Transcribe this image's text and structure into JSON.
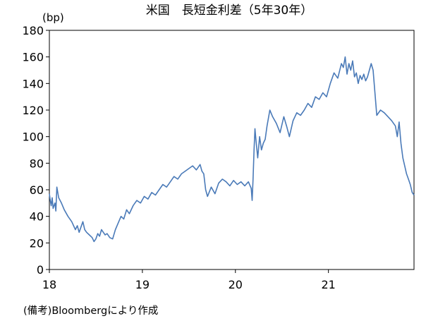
{
  "chart_data": {
    "type": "line",
    "title": "米国　長短金利差（5年30年）",
    "ylabel": "(bp)",
    "xlabel": "",
    "note": "(備考)Bloombergにより作成",
    "ylim": [
      0,
      180
    ],
    "yticks": [
      0,
      20,
      40,
      60,
      80,
      100,
      120,
      140,
      160,
      180
    ],
    "ytick_labels": [
      "0",
      "20",
      "40",
      "60",
      "80",
      "100",
      "120",
      "140",
      "160",
      "180"
    ],
    "xlim": [
      2018.0,
      2021.92
    ],
    "xticks": [
      2018,
      2019,
      2020,
      2021
    ],
    "xtick_labels": [
      "18",
      "19",
      "20",
      "21"
    ],
    "line_color": "#4a7ab8",
    "series": [
      {
        "x": [
          2018.0,
          2018.01,
          2018.02,
          2018.03,
          2018.04,
          2018.06,
          2018.07,
          2018.08,
          2018.1,
          2018.13,
          2018.16,
          2018.2,
          2018.24,
          2018.28,
          2018.3,
          2018.32,
          2018.36,
          2018.38,
          2018.4,
          2018.43,
          2018.46,
          2018.48,
          2018.5,
          2018.52,
          2018.54,
          2018.56,
          2018.58,
          2018.6,
          2018.62,
          2018.65,
          2018.68,
          2018.71,
          2018.74,
          2018.77,
          2018.8,
          2018.83,
          2018.86,
          2018.9,
          2018.94,
          2018.98,
          2019.02,
          2019.06,
          2019.1,
          2019.14,
          2019.18,
          2019.22,
          2019.26,
          2019.3,
          2019.34,
          2019.38,
          2019.42,
          2019.46,
          2019.5,
          2019.54,
          2019.58,
          2019.62,
          2019.64,
          2019.66,
          2019.68,
          2019.7,
          2019.74,
          2019.78,
          2019.82,
          2019.86,
          2019.9,
          2019.94,
          2019.98,
          2020.02,
          2020.06,
          2020.1,
          2020.14,
          2020.17,
          2020.18,
          2020.19,
          2020.2,
          2020.21,
          2020.22,
          2020.24,
          2020.26,
          2020.28,
          2020.3,
          2020.32,
          2020.34,
          2020.37,
          2020.4,
          2020.44,
          2020.48,
          2020.52,
          2020.55,
          2020.58,
          2020.62,
          2020.66,
          2020.7,
          2020.74,
          2020.78,
          2020.82,
          2020.86,
          2020.9,
          2020.94,
          2020.98,
          2021.02,
          2021.06,
          2021.1,
          2021.14,
          2021.16,
          2021.18,
          2021.2,
          2021.22,
          2021.24,
          2021.26,
          2021.28,
          2021.3,
          2021.32,
          2021.34,
          2021.36,
          2021.38,
          2021.4,
          2021.42,
          2021.44,
          2021.46,
          2021.48,
          2021.52,
          2021.56,
          2021.6,
          2021.64,
          2021.68,
          2021.72,
          2021.74,
          2021.76,
          2021.78,
          2021.8,
          2021.82,
          2021.84,
          2021.86,
          2021.88,
          2021.9,
          2021.92
        ],
        "y": [
          57,
          52,
          48,
          54,
          46,
          50,
          44,
          62,
          54,
          50,
          45,
          40,
          36,
          30,
          33,
          28,
          36,
          30,
          28,
          26,
          24,
          21,
          23,
          27,
          25,
          30,
          28,
          26,
          27,
          24,
          23,
          30,
          35,
          40,
          38,
          45,
          42,
          48,
          52,
          50,
          55,
          53,
          58,
          56,
          60,
          64,
          62,
          66,
          70,
          68,
          72,
          74,
          76,
          78,
          75,
          79,
          74,
          72,
          60,
          55,
          62,
          57,
          65,
          68,
          66,
          63,
          67,
          64,
          66,
          63,
          66,
          61,
          52,
          68,
          90,
          106,
          98,
          84,
          100,
          90,
          95,
          98,
          108,
          120,
          115,
          110,
          103,
          115,
          108,
          100,
          112,
          118,
          116,
          120,
          125,
          122,
          130,
          128,
          133,
          130,
          140,
          148,
          144,
          155,
          152,
          160,
          147,
          155,
          150,
          157,
          145,
          148,
          140,
          146,
          143,
          147,
          142,
          145,
          150,
          155,
          150,
          116,
          120,
          118,
          115,
          112,
          108,
          100,
          111,
          95,
          84,
          78,
          72,
          68,
          64,
          58,
          56
        ]
      }
    ]
  }
}
